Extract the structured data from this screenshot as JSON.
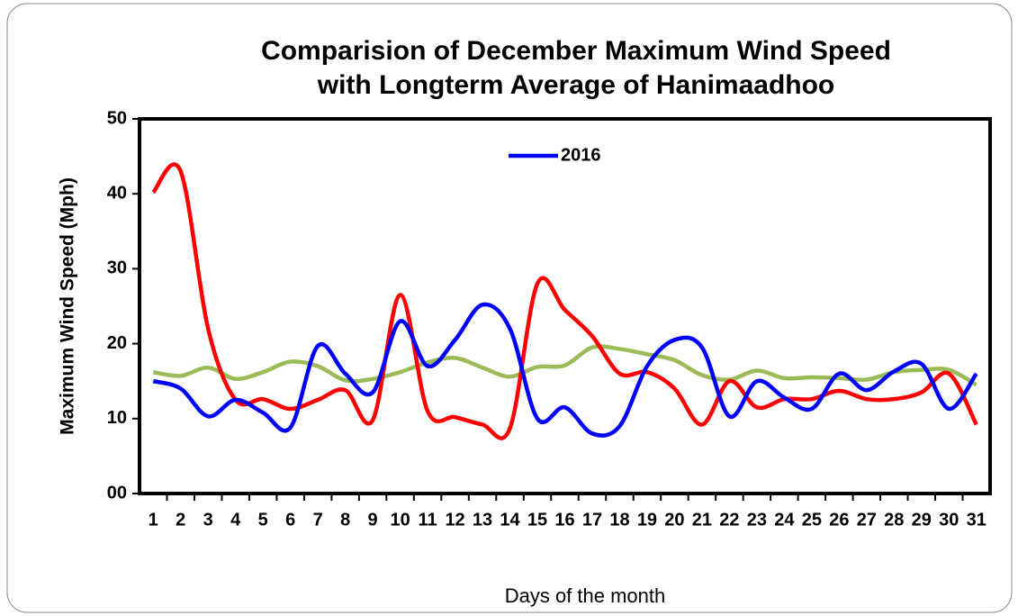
{
  "chart_data": {
    "type": "line",
    "title": [
      "Comparision of December Maximum Wind Speed",
      "with Longterm Average of Hanimaadhoo"
    ],
    "xlabel": "Days of the month",
    "ylabel": "Maximum Wind Speed (Mph)",
    "categories": [
      "1",
      "2",
      "3",
      "4",
      "5",
      "6",
      "7",
      "8",
      "9",
      "10",
      "11",
      "12",
      "13",
      "14",
      "15",
      "16",
      "17",
      "18",
      "19",
      "20",
      "21",
      "22",
      "23",
      "24",
      "25",
      "26",
      "27",
      "28",
      "29",
      "30",
      "31"
    ],
    "series": [
      {
        "name": "2016",
        "color": "#0000ff",
        "values": [
          15,
          14,
          10.3,
          12.5,
          10.8,
          8.8,
          19.7,
          16,
          13.5,
          23,
          17,
          20.5,
          25.2,
          22,
          10,
          11.5,
          8,
          9,
          17,
          20.5,
          19.5,
          10.3,
          15,
          12.8,
          11.3,
          16,
          13.8,
          16.3,
          17.3,
          11.3,
          16
        ]
      },
      {
        "color": "#ff0000",
        "values": [
          40.2,
          43,
          22,
          12.5,
          12.6,
          11.3,
          12.5,
          13.8,
          9.8,
          26.5,
          11,
          10.2,
          9.2,
          8.7,
          28,
          24.5,
          21,
          16,
          16.2,
          14,
          9.2,
          15,
          11.5,
          12.6,
          12.6,
          13.7,
          12.6,
          12.6,
          13.5,
          16,
          9.2
        ]
      },
      {
        "color": "#9bbb59",
        "values": [
          16.2,
          15.7,
          16.8,
          15.3,
          16.2,
          17.6,
          17,
          15.1,
          15.3,
          16.2,
          17.5,
          18.1,
          16.8,
          15.6,
          16.9,
          17.1,
          19.5,
          19.3,
          18.6,
          17.8,
          15.8,
          15.2,
          16.4,
          15.4,
          15.5,
          15.4,
          15.2,
          16.2,
          16.5,
          16.5,
          14.5
        ]
      }
    ],
    "ylim": [
      0,
      50
    ],
    "yticks": [
      {
        "value": 0,
        "label": "00"
      },
      10,
      20,
      30,
      40,
      50
    ],
    "smooth": true,
    "legend": "top"
  }
}
